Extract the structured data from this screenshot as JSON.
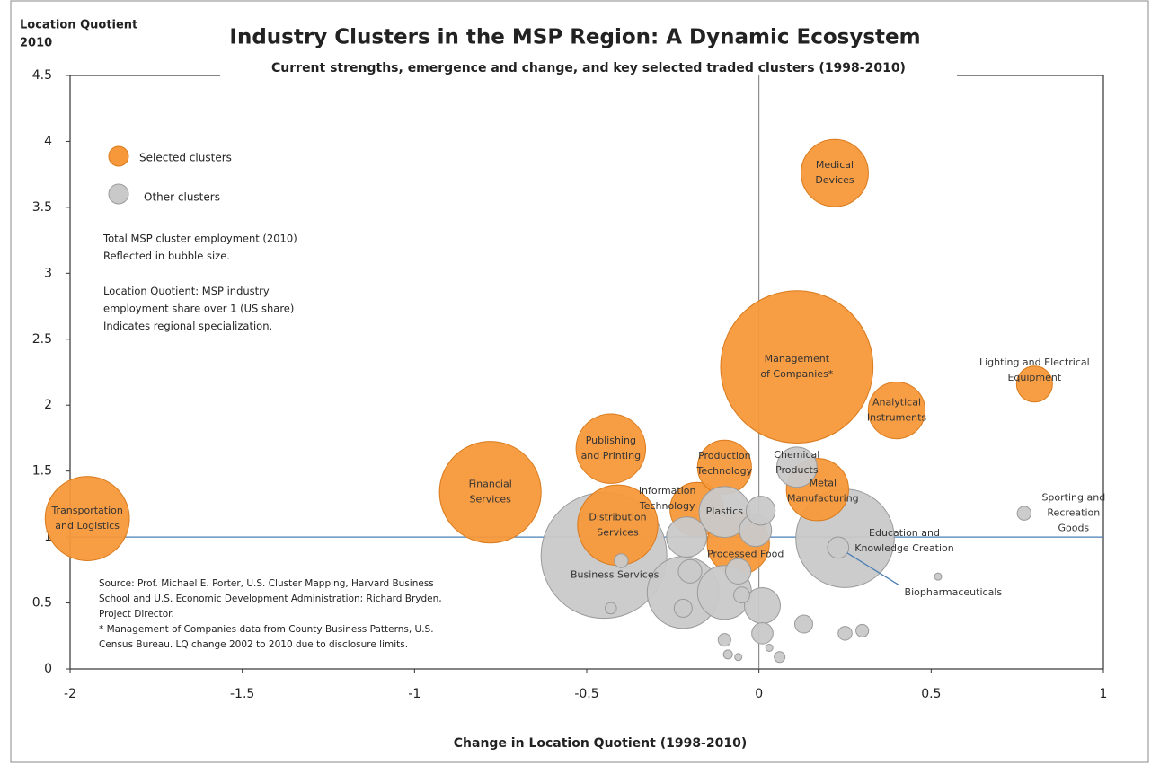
{
  "chart_data": {
    "type": "bubble",
    "title": "Industry Clusters in the MSP Region: A Dynamic Ecosystem",
    "subtitle": "Current strengths, emergence and change, and key selected  traded clusters  (1998-2010)",
    "y_label": [
      "Location Quotient",
      "2010"
    ],
    "x_label": "Change in Location Quotient (1998-2010)",
    "xlim": [
      -2,
      1
    ],
    "xticks": [
      -2,
      -1.5,
      -1,
      -0.5,
      0,
      0.5,
      1
    ],
    "ylim": [
      0,
      4.5
    ],
    "yticks": [
      0,
      0.5,
      1,
      1.5,
      2,
      2.5,
      3,
      3.5,
      4,
      4.5
    ],
    "reference_lines": {
      "x": 0,
      "y": 1
    },
    "notes": [
      "Total  MSP cluster employment (2010)",
      "Reflected in bubble  size.",
      "",
      "Location Quotient: MSP industry",
      "employment share over 1 (US share)",
      "Indicates regional specialization."
    ],
    "source": [
      "Source: Prof. Michael E. Porter, U.S. Cluster Mapping, Harvard Business",
      "School  and U.S. Economic Development Administration; Richard Bryden,",
      "Project Director.",
      "* Management of Companies data from County Business Patterns, U.S.",
      "Census Bureau. LQ change 2002 to 2010 due to disclosure limits."
    ],
    "series": [
      {
        "name": "Selected clusters",
        "color": "#f7983a",
        "x": [
          -1.95,
          -0.78,
          -0.43,
          -0.41,
          -0.18,
          -0.1,
          -0.06,
          0.11,
          0.22,
          0.4,
          0.17,
          0.8
        ],
        "y": [
          1.14,
          1.34,
          1.67,
          1.09,
          1.21,
          1.53,
          0.95,
          2.29,
          3.76,
          1.96,
          1.36,
          2.16
        ],
        "size": [
          22,
          32,
          15,
          20,
          9,
          9,
          12,
          72,
          14,
          10,
          12,
          4
        ],
        "labels": [
          [
            "Transportation",
            "and Logistics"
          ],
          [
            "Financial",
            "Services"
          ],
          [
            "Publishing",
            "and Printing"
          ],
          [
            "Distribution",
            "Services"
          ],
          [
            "Information",
            "Technology"
          ],
          [
            "Production",
            "Technology"
          ],
          [
            "Processed Food"
          ],
          [
            "Management",
            "of Companies*"
          ],
          [
            "Medical",
            "Devices"
          ],
          [
            "Analytical",
            "Instruments"
          ],
          [
            "Metal",
            "Manufacturing"
          ],
          [
            "Lighting and Electrical",
            "Equipment"
          ]
        ]
      },
      {
        "name": "Other clusters",
        "color": "#c9c9c9",
        "x": [
          -0.45,
          0.11,
          -0.1,
          0.25,
          0.23,
          0.77,
          -0.22,
          -0.1,
          0.005,
          -0.01,
          0.01,
          -0.21,
          -0.2,
          -0.06,
          -0.05,
          -0.22,
          -0.4,
          -0.43,
          0.01,
          0.13,
          0.25,
          0.3,
          -0.1,
          -0.09,
          -0.06,
          0.03,
          0.06,
          0.52
        ],
        "y": [
          0.86,
          1.53,
          1.19,
          0.99,
          0.92,
          1.18,
          0.58,
          0.58,
          1.2,
          1.05,
          0.48,
          1.0,
          0.74,
          0.74,
          0.56,
          0.46,
          0.82,
          0.46,
          0.27,
          0.34,
          0.27,
          0.29,
          0.22,
          0.11,
          0.09,
          0.16,
          0.09,
          0.7
        ],
        "size": [
          49,
          5,
          8,
          30,
          1.4,
          0.6,
          16,
          9,
          2.6,
          3.2,
          4,
          5,
          1.7,
          2,
          0.8,
          1,
          0.6,
          0.4,
          1.4,
          1,
          0.6,
          0.5,
          0.5,
          0.25,
          0.16,
          0.16,
          0.36,
          0.16
        ],
        "labels": [
          [
            "Business Services"
          ],
          [
            "Chemical",
            "Products"
          ],
          [
            "Plastics"
          ],
          [
            "Education and",
            "Knowledge Creation"
          ],
          [
            "Biopharmaceuticals"
          ],
          [
            "Sporting and",
            "Recreation",
            "Goods"
          ],
          null,
          null,
          null,
          null,
          null,
          null,
          null,
          null,
          null,
          null,
          null,
          null,
          null,
          null,
          null,
          null,
          null,
          null,
          null,
          null,
          null,
          null
        ]
      }
    ]
  }
}
